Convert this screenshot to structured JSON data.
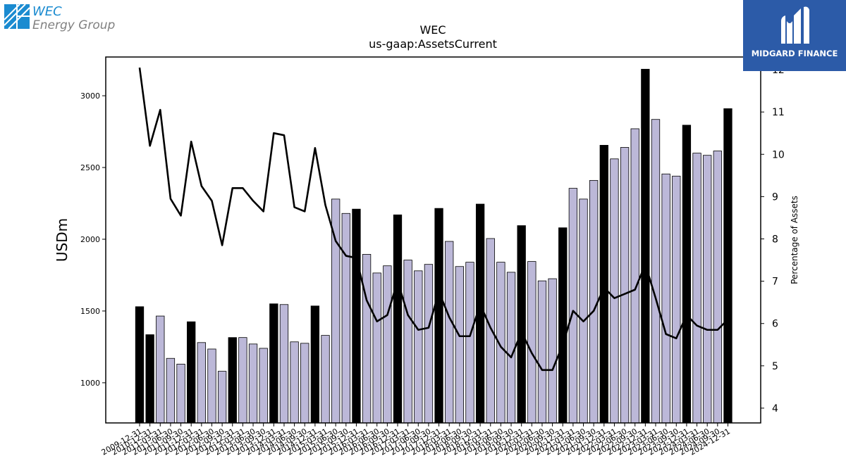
{
  "logos": {
    "left_line1": "WEC",
    "left_line2": "Energy Group",
    "right": "MIDGARD FINANCE"
  },
  "colors": {
    "bar_annual": "#000000",
    "bar_quarter": "#bcb8d8",
    "line": "#000000",
    "logo_blue": "#1b8bd0",
    "logo_gray": "#808080",
    "midgard_bg": "#2c5ba8"
  },
  "chart_data": {
    "type": "bar",
    "title": "WEC",
    "subtitle": "us-gaap:AssetsCurrent",
    "ylabel": "USDm",
    "y2label": "Percentage of Assets",
    "ylim": [
      720,
      3270
    ],
    "y2lim": [
      3.65,
      12.3
    ],
    "yticks": [
      1000,
      1500,
      2000,
      2500,
      3000
    ],
    "y2ticks": [
      4,
      5,
      6,
      7,
      8,
      9,
      10,
      11,
      12
    ],
    "categories": [
      "2009-12-31",
      "2010-12-31",
      "2011-03-31",
      "2011-06-30",
      "2011-09-30",
      "2011-12-31",
      "2012-03-31",
      "2012-06-30",
      "2012-09-30",
      "2012-12-31",
      "2013-03-31",
      "2013-06-30",
      "2013-09-30",
      "2013-12-31",
      "2014-03-31",
      "2014-06-30",
      "2014-09-30",
      "2014-12-31",
      "2015-03-31",
      "2015-06-30",
      "2015-09-30",
      "2015-12-31",
      "2016-03-31",
      "2016-06-30",
      "2016-09-30",
      "2016-12-31",
      "2017-03-31",
      "2017-06-30",
      "2017-09-30",
      "2017-12-31",
      "2018-03-31",
      "2018-06-30",
      "2018-09-30",
      "2018-12-31",
      "2019-03-31",
      "2019-06-30",
      "2019-09-30",
      "2019-12-31",
      "2020-03-31",
      "2020-06-30",
      "2020-09-30",
      "2020-12-31",
      "2021-03-31",
      "2021-06-30",
      "2021-09-30",
      "2021-12-31",
      "2022-03-31",
      "2022-06-30",
      "2022-09-30",
      "2022-12-31",
      "2023-03-31",
      "2023-06-30",
      "2023-09-30",
      "2023-12-31",
      "2024-03-31",
      "2024-06-30",
      "2024-09-30",
      "2024-12-31"
    ],
    "series": [
      {
        "type": "bar",
        "values": [
          1530,
          1335,
          1465,
          1170,
          1130,
          1425,
          1280,
          1235,
          1080,
          1315,
          1315,
          1270,
          1240,
          1550,
          1545,
          1285,
          1275,
          1535,
          1330,
          2280,
          2180,
          2210,
          1895,
          1765,
          1815,
          2170,
          1855,
          1780,
          1825,
          2215,
          1985,
          1810,
          1840,
          2245,
          2005,
          1840,
          1770,
          2095,
          1845,
          1710,
          1725,
          2080,
          2355,
          2280,
          2410,
          2655,
          2560,
          2640,
          2770,
          3185,
          2835,
          2455,
          2440,
          2795,
          2600,
          2585,
          2615,
          2910
        ],
        "annual": [
          true,
          true,
          false,
          false,
          false,
          true,
          false,
          false,
          false,
          true,
          false,
          false,
          false,
          true,
          false,
          false,
          false,
          true,
          false,
          false,
          false,
          true,
          false,
          false,
          false,
          true,
          false,
          false,
          false,
          true,
          false,
          false,
          false,
          true,
          false,
          false,
          false,
          true,
          false,
          false,
          false,
          true,
          false,
          false,
          false,
          true,
          false,
          false,
          false,
          true,
          false,
          false,
          false,
          true,
          false,
          false,
          false,
          true
        ]
      },
      {
        "type": "line",
        "axis": "right",
        "values": [
          12.05,
          10.2,
          11.05,
          8.95,
          8.55,
          10.3,
          9.25,
          8.9,
          7.85,
          9.2,
          9.2,
          8.9,
          8.65,
          10.5,
          10.45,
          8.75,
          8.65,
          10.15,
          8.8,
          7.95,
          7.6,
          7.55,
          6.55,
          6.05,
          6.2,
          7.0,
          6.2,
          5.85,
          5.9,
          6.75,
          6.15,
          5.7,
          5.7,
          6.45,
          5.9,
          5.45,
          5.2,
          5.8,
          5.3,
          4.9,
          4.9,
          5.5,
          6.3,
          6.05,
          6.3,
          6.85,
          6.6,
          6.7,
          6.8,
          7.4,
          6.6,
          5.75,
          5.65,
          6.2,
          5.95,
          5.85,
          5.85,
          6.1
        ]
      }
    ],
    "grid": false,
    "legend": "none"
  }
}
